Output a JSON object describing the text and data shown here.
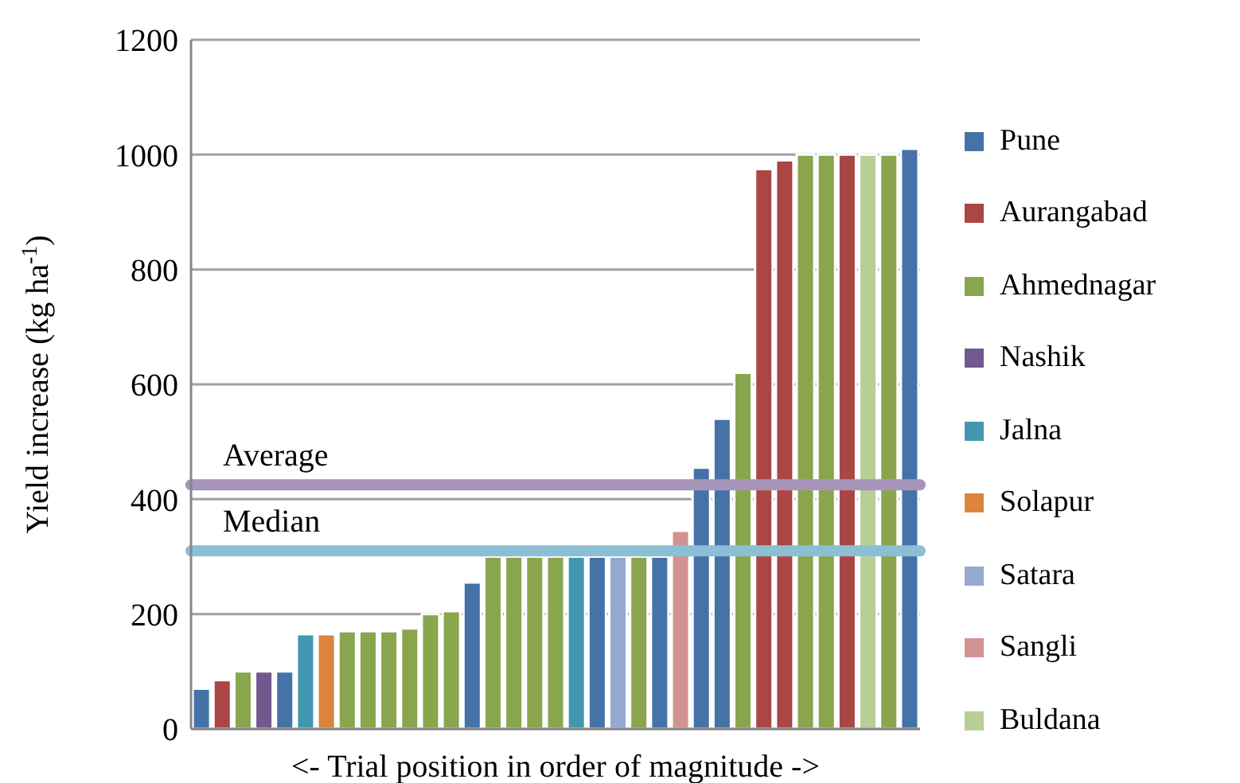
{
  "chart_data": {
    "type": "bar",
    "xlabel": "<- Trial position in order of magnitude ->",
    "ylabel": "Yield increase (kg ha$^{-1}$)",
    "categories": [
      null,
      null,
      null,
      null,
      null,
      null,
      null,
      null,
      null,
      null,
      null,
      null,
      null,
      null,
      null,
      null,
      null,
      null,
      null,
      null,
      null,
      null,
      null,
      null,
      null,
      null,
      null,
      null,
      null,
      null,
      null,
      null,
      null,
      null,
      null
    ],
    "stacked": true,
    "ylim": [
      0,
      1200
    ],
    "yticks": [
      0,
      200,
      400,
      600,
      800,
      1000,
      1200
    ],
    "grid": "y",
    "legend": "right",
    "series": [
      {
        "name": "Pune",
        "color": "#4572a7",
        "values": [
          70,
          null,
          null,
          null,
          100,
          null,
          null,
          null,
          null,
          null,
          null,
          null,
          null,
          255,
          null,
          null,
          null,
          null,
          null,
          300,
          null,
          null,
          300,
          null,
          455,
          540,
          null,
          null,
          null,
          null,
          null,
          null,
          null,
          null,
          1010
        ]
      },
      {
        "name": "Aurangabad",
        "color": "#aa4643",
        "values": [
          null,
          85,
          null,
          null,
          null,
          null,
          null,
          null,
          null,
          null,
          null,
          null,
          null,
          null,
          null,
          null,
          null,
          null,
          null,
          null,
          null,
          null,
          null,
          null,
          null,
          null,
          null,
          975,
          990,
          null,
          null,
          1000,
          null,
          null,
          null
        ]
      },
      {
        "name": "Ahmednagar",
        "color": "#89a54e",
        "values": [
          null,
          null,
          100,
          null,
          null,
          null,
          null,
          170,
          170,
          170,
          175,
          200,
          205,
          null,
          300,
          300,
          300,
          300,
          null,
          null,
          null,
          300,
          null,
          null,
          null,
          null,
          620,
          null,
          null,
          1000,
          1000,
          null,
          null,
          1000,
          null
        ]
      },
      {
        "name": "Nashik",
        "color": "#71588f",
        "values": [
          null,
          null,
          null,
          100,
          null,
          null,
          null,
          null,
          null,
          null,
          null,
          null,
          null,
          null,
          null,
          null,
          null,
          null,
          null,
          null,
          null,
          null,
          null,
          null,
          null,
          null,
          null,
          null,
          null,
          null,
          null,
          null,
          null,
          null,
          null
        ]
      },
      {
        "name": "Jalna",
        "color": "#4198af",
        "values": [
          null,
          null,
          null,
          null,
          null,
          165,
          null,
          null,
          null,
          null,
          null,
          null,
          null,
          null,
          null,
          null,
          null,
          null,
          300,
          null,
          null,
          null,
          null,
          null,
          null,
          null,
          null,
          null,
          null,
          null,
          null,
          null,
          null,
          null,
          null
        ]
      },
      {
        "name": "Solapur",
        "color": "#db843d",
        "values": [
          null,
          null,
          null,
          null,
          null,
          null,
          165,
          null,
          null,
          null,
          null,
          null,
          null,
          null,
          null,
          null,
          null,
          null,
          null,
          null,
          null,
          null,
          null,
          null,
          null,
          null,
          null,
          null,
          null,
          null,
          null,
          null,
          null,
          null,
          null
        ]
      },
      {
        "name": "Satara",
        "color": "#93a9cf",
        "values": [
          null,
          null,
          null,
          null,
          null,
          null,
          null,
          null,
          null,
          null,
          null,
          null,
          null,
          null,
          null,
          null,
          null,
          null,
          null,
          null,
          300,
          null,
          null,
          null,
          null,
          null,
          null,
          null,
          null,
          null,
          null,
          null,
          null,
          null,
          null
        ]
      },
      {
        "name": "Sangli",
        "color": "#d19392",
        "values": [
          null,
          null,
          null,
          null,
          null,
          null,
          null,
          null,
          null,
          null,
          null,
          null,
          null,
          null,
          null,
          null,
          null,
          null,
          null,
          null,
          null,
          null,
          null,
          345,
          null,
          null,
          null,
          null,
          null,
          null,
          null,
          null,
          null,
          null,
          null
        ]
      },
      {
        "name": "Buldana",
        "color": "#b9cd96",
        "values": [
          null,
          null,
          null,
          null,
          null,
          null,
          null,
          null,
          null,
          null,
          null,
          null,
          null,
          null,
          null,
          null,
          null,
          null,
          null,
          null,
          null,
          null,
          null,
          null,
          null,
          null,
          null,
          null,
          null,
          null,
          null,
          null,
          1000,
          null,
          null
        ]
      }
    ],
    "ref_lines": [
      {
        "axis": "y",
        "value": 425,
        "label": "Average",
        "color": "#a695b9"
      },
      {
        "axis": "y",
        "value": 310,
        "label": "Median",
        "color": "#8bbfd4"
      }
    ]
  }
}
